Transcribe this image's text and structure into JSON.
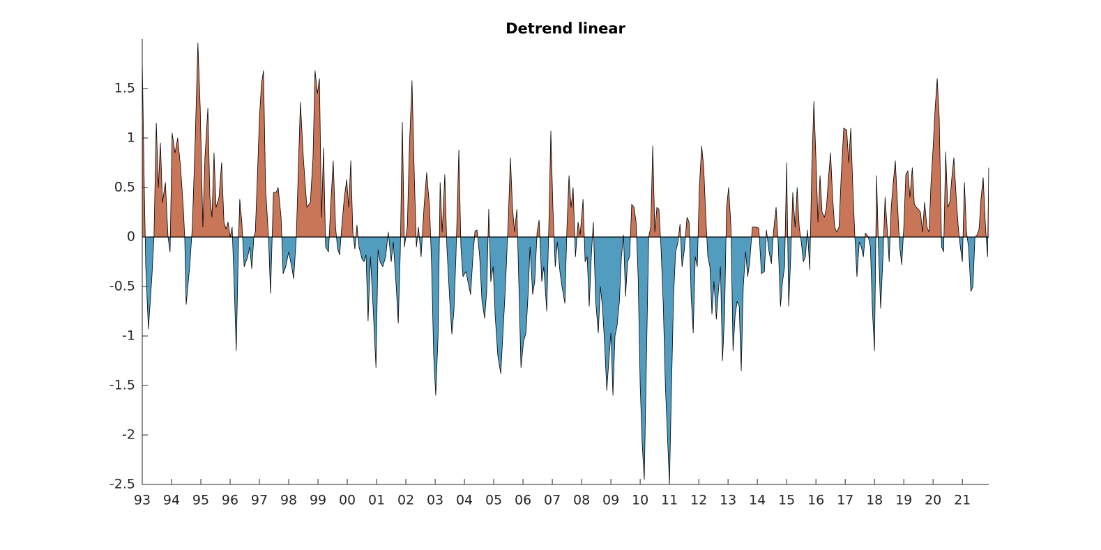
{
  "chart_data": {
    "type": "signed-area",
    "title": "Detrend linear",
    "positive_color": "#c87558",
    "negative_color": "#519cbf",
    "line_color": "#000000",
    "xlim": [
      1993,
      2021.9
    ],
    "ylim": [
      -2.5,
      2
    ],
    "yticks": [
      -2.5,
      -2,
      -1.5,
      -1,
      -0.5,
      0,
      0.5,
      1,
      1.5
    ],
    "xticks": [
      {
        "value": 1993,
        "label": "93"
      },
      {
        "value": 1994,
        "label": "94"
      },
      {
        "value": 1995,
        "label": "95"
      },
      {
        "value": 1996,
        "label": "96"
      },
      {
        "value": 1997,
        "label": "97"
      },
      {
        "value": 1998,
        "label": "98"
      },
      {
        "value": 1999,
        "label": "99"
      },
      {
        "value": 2000,
        "label": "00"
      },
      {
        "value": 2001,
        "label": "01"
      },
      {
        "value": 2002,
        "label": "02"
      },
      {
        "value": 2003,
        "label": "03"
      },
      {
        "value": 2004,
        "label": "04"
      },
      {
        "value": 2005,
        "label": "05"
      },
      {
        "value": 2006,
        "label": "06"
      },
      {
        "value": 2007,
        "label": "07"
      },
      {
        "value": 2008,
        "label": "08"
      },
      {
        "value": 2009,
        "label": "09"
      },
      {
        "value": 2010,
        "label": "10"
      },
      {
        "value": 2011,
        "label": "11"
      },
      {
        "value": 2012,
        "label": "12"
      },
      {
        "value": 2013,
        "label": "13"
      },
      {
        "value": 2014,
        "label": "14"
      },
      {
        "value": 2015,
        "label": "15"
      },
      {
        "value": 2016,
        "label": "16"
      },
      {
        "value": 2017,
        "label": "17"
      },
      {
        "value": 2018,
        "label": "18"
      },
      {
        "value": 2019,
        "label": "19"
      },
      {
        "value": 2020,
        "label": "20"
      },
      {
        "value": 2021,
        "label": "21"
      }
    ],
    "x": [
      1993.0,
      1993.07,
      1993.12,
      1993.21,
      1993.33,
      1993.4,
      1993.48,
      1993.55,
      1993.62,
      1993.69,
      1993.79,
      1993.88,
      1993.95,
      1994.02,
      1994.12,
      1994.21,
      1994.31,
      1994.4,
      1994.45,
      1994.5,
      1994.62,
      1994.71,
      1994.81,
      1994.9,
      1994.98,
      1995.07,
      1995.14,
      1995.24,
      1995.31,
      1995.38,
      1995.45,
      1995.52,
      1995.62,
      1995.71,
      1995.79,
      1995.86,
      1995.93,
      1996.0,
      1996.07,
      1996.14,
      1996.21,
      1996.29,
      1996.33,
      1996.4,
      1996.48,
      1996.6,
      1996.67,
      1996.74,
      1996.81,
      1996.86,
      1996.93,
      1997.0,
      1997.07,
      1997.14,
      1997.21,
      1997.31,
      1997.38,
      1997.48,
      1997.57,
      1997.64,
      1997.74,
      1997.81,
      1997.9,
      1998.0,
      1998.1,
      1998.17,
      1998.26,
      1998.33,
      1998.4,
      1998.5,
      1998.62,
      1998.74,
      1998.83,
      1998.9,
      1998.98,
      1999.05,
      1999.12,
      1999.19,
      1999.26,
      1999.36,
      1999.43,
      1999.52,
      1999.6,
      1999.67,
      1999.74,
      1999.81,
      1999.9,
      1999.98,
      2000.05,
      2000.12,
      2000.19,
      2000.26,
      2000.33,
      2000.4,
      2000.5,
      2000.57,
      2000.64,
      2000.71,
      2000.79,
      2000.88,
      2000.98,
      2001.05,
      2001.12,
      2001.21,
      2001.31,
      2001.4,
      2001.5,
      2001.57,
      2001.67,
      2001.74,
      2001.81,
      2001.88,
      2001.95,
      2002.05,
      2002.12,
      2002.21,
      2002.29,
      2002.36,
      2002.43,
      2002.52,
      2002.62,
      2002.71,
      2002.81,
      2002.88,
      2002.95,
      2003.02,
      2003.1,
      2003.17,
      2003.24,
      2003.33,
      2003.4,
      2003.5,
      2003.57,
      2003.64,
      2003.71,
      2003.81,
      2003.88,
      2003.95,
      2004.05,
      2004.12,
      2004.21,
      2004.29,
      2004.36,
      2004.43,
      2004.52,
      2004.6,
      2004.69,
      2004.76,
      2004.83,
      2004.9,
      2004.98,
      2005.05,
      2005.14,
      2005.24,
      2005.31,
      2005.4,
      2005.5,
      2005.57,
      2005.64,
      2005.71,
      2005.79,
      2005.86,
      2005.93,
      2006.02,
      2006.1,
      2006.17,
      2006.24,
      2006.33,
      2006.4,
      2006.48,
      2006.55,
      2006.64,
      2006.71,
      2006.81,
      2006.88,
      2006.95,
      2007.02,
      2007.1,
      2007.17,
      2007.26,
      2007.33,
      2007.43,
      2007.5,
      2007.57,
      2007.64,
      2007.71,
      2007.79,
      2007.88,
      2007.95,
      2008.05,
      2008.12,
      2008.19,
      2008.26,
      2008.33,
      2008.4,
      2008.48,
      2008.57,
      2008.64,
      2008.71,
      2008.79,
      2008.86,
      2008.93,
      2009.0,
      2009.07,
      2009.14,
      2009.21,
      2009.29,
      2009.36,
      2009.43,
      2009.5,
      2009.57,
      2009.64,
      2009.71,
      2009.79,
      2009.86,
      2009.93,
      2010.0,
      2010.07,
      2010.14,
      2010.21,
      2010.29,
      2010.36,
      2010.43,
      2010.5,
      2010.57,
      2010.64,
      2010.71,
      2010.79,
      2010.86,
      2010.93,
      2011.0,
      2011.07,
      2011.14,
      2011.21,
      2011.29,
      2011.36,
      2011.43,
      2011.5,
      2011.6,
      2011.67,
      2011.74,
      2011.81,
      2011.88,
      2011.95,
      2012.02,
      2012.1,
      2012.17,
      2012.24,
      2012.31,
      2012.38,
      2012.45,
      2012.52,
      2012.6,
      2012.67,
      2012.74,
      2012.81,
      2012.88,
      2012.95,
      2013.02,
      2013.1,
      2013.17,
      2013.24,
      2013.31,
      2013.38,
      2013.45,
      2013.52,
      2013.6,
      2013.67,
      2013.74,
      2013.83,
      2013.95,
      2014.05,
      2014.14,
      2014.24,
      2014.31,
      2014.4,
      2014.48,
      2014.55,
      2014.64,
      2014.71,
      2014.79,
      2014.86,
      2014.93,
      2015.0,
      2015.07,
      2015.14,
      2015.21,
      2015.29,
      2015.36,
      2015.43,
      2015.5,
      2015.57,
      2015.64,
      2015.71,
      2015.79,
      2015.86,
      2015.93,
      2016.0,
      2016.07,
      2016.14,
      2016.21,
      2016.29,
      2016.36,
      2016.43,
      2016.5,
      2016.57,
      2016.64,
      2016.71,
      2016.79,
      2016.86,
      2016.95,
      2017.05,
      2017.12,
      2017.19,
      2017.26,
      2017.33,
      2017.4,
      2017.48,
      2017.55,
      2017.62,
      2017.69,
      2017.79,
      2017.86,
      2017.93,
      2018.0,
      2018.07,
      2018.14,
      2018.21,
      2018.29,
      2018.36,
      2018.43,
      2018.5,
      2018.57,
      2018.64,
      2018.71,
      2018.79,
      2018.86,
      2018.93,
      2019.0,
      2019.07,
      2019.14,
      2019.21,
      2019.29,
      2019.36,
      2019.43,
      2019.5,
      2019.57,
      2019.64,
      2019.71,
      2019.79,
      2019.86,
      2019.93,
      2020.0,
      2020.07,
      2020.14,
      2020.21,
      2020.29,
      2020.36,
      2020.43,
      2020.5,
      2020.57,
      2020.64,
      2020.71,
      2020.79,
      2020.86,
      2020.93,
      2021.0,
      2021.07,
      2021.14,
      2021.21,
      2021.29,
      2021.36,
      2021.43,
      2021.5,
      2021.57,
      2021.64,
      2021.71,
      2021.79,
      2021.86,
      2021.9
    ],
    "values": [
      1.8,
      0.5,
      -0.3,
      -0.93,
      -0.4,
      0,
      1.15,
      0.5,
      0.95,
      0.35,
      0.55,
      0,
      -0.15,
      1.05,
      0.85,
      1.0,
      0.7,
      0.3,
      0,
      -0.68,
      -0.3,
      0.1,
      1.0,
      1.96,
      1.3,
      0.1,
      0.8,
      1.3,
      0.4,
      0.2,
      0.85,
      0.3,
      0.4,
      0.75,
      0.15,
      0.08,
      0.15,
      0,
      0.1,
      -0.5,
      -1.15,
      0,
      0.38,
      0.15,
      -0.3,
      -0.2,
      -0.1,
      -0.32,
      0,
      0.05,
      0.6,
      1.2,
      1.55,
      1.68,
      0.5,
      0,
      -0.57,
      0.45,
      0.45,
      0.5,
      0.2,
      -0.37,
      -0.3,
      -0.15,
      -0.3,
      -0.42,
      0,
      0.7,
      1.36,
      0.8,
      0.3,
      0.35,
      0.8,
      1.68,
      1.45,
      1.6,
      0.2,
      0.9,
      -0.1,
      -0.15,
      0.3,
      0.77,
      0.1,
      -0.12,
      -0.18,
      0.1,
      0.4,
      0.58,
      0.3,
      0.77,
      0.05,
      -0.12,
      0.12,
      -0.1,
      -0.22,
      -0.25,
      -0.18,
      -0.85,
      -0.2,
      -0.7,
      -1.32,
      -0.13,
      -0.25,
      -0.3,
      -0.2,
      0.05,
      -0.25,
      -0.05,
      -0.5,
      -0.87,
      -0.15,
      1.16,
      -0.1,
      0.1,
      0.9,
      1.58,
      0.6,
      -0.1,
      0.1,
      -0.2,
      0.3,
      0.65,
      0.3,
      -0.3,
      -1.2,
      -1.6,
      -1.0,
      0.55,
      0.05,
      0.63,
      -0.1,
      -0.65,
      -0.98,
      -0.75,
      -0.2,
      0.88,
      -0.1,
      -0.4,
      -0.35,
      -0.45,
      -0.58,
      -0.2,
      0.06,
      0.07,
      -0.2,
      -0.65,
      -0.82,
      -0.55,
      0.28,
      -0.45,
      -0.3,
      -0.8,
      -1.2,
      -1.38,
      -1.0,
      -0.5,
      0.2,
      0.8,
      0.3,
      0.05,
      0.28,
      -0.5,
      -1.32,
      -1.05,
      -0.97,
      -0.6,
      -0.1,
      -0.58,
      -0.45,
      0.05,
      0.17,
      -0.45,
      -0.3,
      -0.75,
      0.1,
      1.07,
      0.3,
      -0.3,
      -0.05,
      -0.35,
      -0.5,
      -0.67,
      0.1,
      0.62,
      0.3,
      0.5,
      -0.2,
      0.15,
      0.02,
      0.38,
      -0.25,
      -0.2,
      -0.7,
      -0.2,
      0.15,
      -0.65,
      -0.97,
      -0.5,
      -0.7,
      -1.1,
      -1.55,
      -1.25,
      -0.97,
      -1.6,
      -1.0,
      -0.9,
      -0.65,
      -0.2,
      0.02,
      -0.6,
      -0.25,
      -0.2,
      0.33,
      0.3,
      0.15,
      -0.4,
      -1.5,
      -2.1,
      -2.45,
      -1.3,
      0,
      0.1,
      0.92,
      0.05,
      0.3,
      0.28,
      -0.1,
      -0.7,
      -1.5,
      -2.0,
      -2.5,
      -1.5,
      -0.6,
      -0.15,
      -0.05,
      0.13,
      -0.3,
      -0.15,
      0.2,
      0.15,
      -0.6,
      -0.97,
      -0.2,
      -0.3,
      0.5,
      0.92,
      0.7,
      0.2,
      -0.2,
      -0.3,
      -0.78,
      -0.45,
      -0.83,
      -0.55,
      -0.3,
      -1.25,
      -0.8,
      0.3,
      0.5,
      0.1,
      -1.15,
      -0.8,
      -0.65,
      -0.7,
      -1.35,
      -0.5,
      -0.15,
      -0.4,
      -0.25,
      0.1,
      0.1,
      0.09,
      -0.37,
      -0.35,
      0.07,
      -0.15,
      -0.27,
      0.05,
      0.3,
      -0.05,
      -0.7,
      -0.45,
      -0.3,
      0.75,
      -0.7,
      -0.2,
      0.45,
      0.1,
      0.5,
      0.1,
      -0.05,
      -0.25,
      -0.2,
      0.07,
      -0.33,
      0.7,
      1.37,
      0.8,
      0.15,
      0.62,
      0.25,
      0.2,
      0.3,
      0.6,
      0.85,
      0.4,
      0.1,
      0.05,
      0.1,
      0.6,
      1.1,
      1.08,
      0.75,
      1.1,
      0.5,
      0,
      -0.4,
      -0.05,
      -0.1,
      -0.2,
      0.04,
      0,
      -0.1,
      -0.75,
      -1.15,
      0.62,
      -0.15,
      -0.72,
      -0.2,
      0.4,
      0.1,
      -0.25,
      0.3,
      0.55,
      0.77,
      0.3,
      -0.1,
      -0.28,
      0.1,
      0.63,
      0.67,
      0.4,
      0.7,
      0.33,
      0.3,
      0.28,
      0.25,
      0.05,
      0.35,
      0.1,
      0.05,
      0.55,
      0.9,
      1.3,
      1.6,
      1.2,
      -0.1,
      -0.15,
      0.86,
      0.3,
      0.35,
      0.6,
      0.8,
      0.4,
      0.1,
      -0.1,
      -0.25,
      0.55,
      0.05,
      -0.1,
      -0.55,
      -0.5,
      0,
      0.02,
      0.08,
      0.4,
      0.6,
      0.1,
      -0.2,
      0.7
    ]
  }
}
